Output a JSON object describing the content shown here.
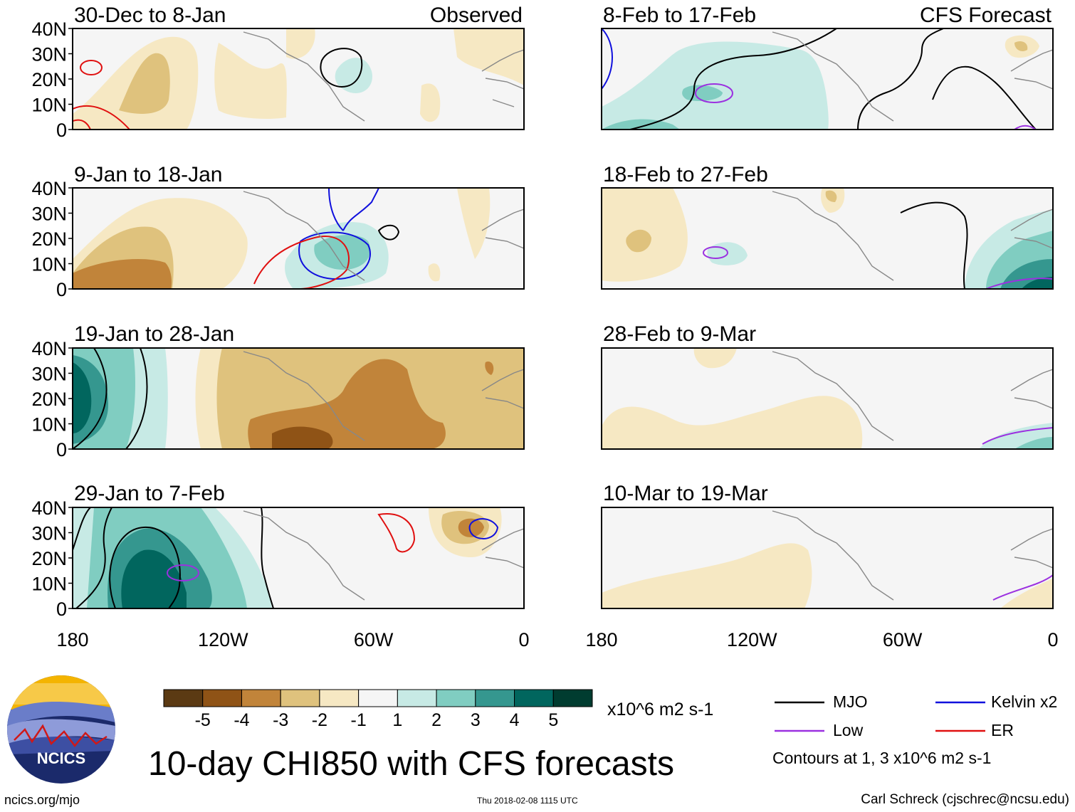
{
  "chart_data": {
    "type": "contour map panels",
    "title": "10-day CHI850 with CFS forecasts",
    "units": "x10^6 m2 s-1",
    "contour_note": "Contours at 1, 3 x10^6 m2 s-1",
    "column_headers": {
      "left": "Observed",
      "right": "CFS Forecast"
    },
    "lat_ticks": [
      "40N",
      "30N",
      "20N",
      "10N",
      "0"
    ],
    "lon_ticks": [
      "180",
      "120W",
      "60W",
      "0"
    ],
    "lat_range": [
      0,
      40
    ],
    "lon_range": [
      -180,
      0
    ],
    "colorbar": {
      "tick_labels": [
        "-5",
        "-4",
        "-3",
        "-2",
        "-1",
        "1",
        "2",
        "3",
        "4",
        "5"
      ],
      "levels": [
        -5,
        -4,
        -3,
        -2,
        -1,
        1,
        2,
        3,
        4,
        5
      ],
      "colors": [
        "#5b3a13",
        "#8f5316",
        "#c1843a",
        "#dfc27d",
        "#f6e8c3",
        "#f5f5f5",
        "#c7eae5",
        "#80cdc1",
        "#35978f",
        "#01665e",
        "#003c30"
      ]
    },
    "legend": [
      {
        "name": "MJO",
        "color": "#000000"
      },
      {
        "name": "Kelvin x2",
        "color": "#1010dd"
      },
      {
        "name": "Low",
        "color": "#9b30e0"
      },
      {
        "name": "ER",
        "color": "#e01010"
      }
    ],
    "panels": [
      {
        "id": "p1",
        "label": "30-Dec to 8-Jan",
        "type": "Observed"
      },
      {
        "id": "p2",
        "label": "9-Jan to 18-Jan",
        "type": "Observed"
      },
      {
        "id": "p3",
        "label": "19-Jan to 28-Jan",
        "type": "Observed"
      },
      {
        "id": "p4",
        "label": "29-Jan to 7-Feb",
        "type": "Observed"
      },
      {
        "id": "p5",
        "label": "8-Feb to 17-Feb",
        "type": "CFS Forecast"
      },
      {
        "id": "p6",
        "label": "18-Feb to 27-Feb",
        "type": "CFS Forecast"
      },
      {
        "id": "p7",
        "label": "28-Feb to 9-Mar",
        "type": "CFS Forecast"
      },
      {
        "id": "p8",
        "label": "10-Mar to 19-Mar",
        "type": "CFS Forecast"
      }
    ]
  },
  "logo": {
    "text": "NCICS"
  },
  "footer": {
    "left": "ncics.org/mjo",
    "middle": "Thu 2018-02-08 1115 UTC",
    "right": "Carl Schreck (cjschrec@ncsu.edu)"
  }
}
